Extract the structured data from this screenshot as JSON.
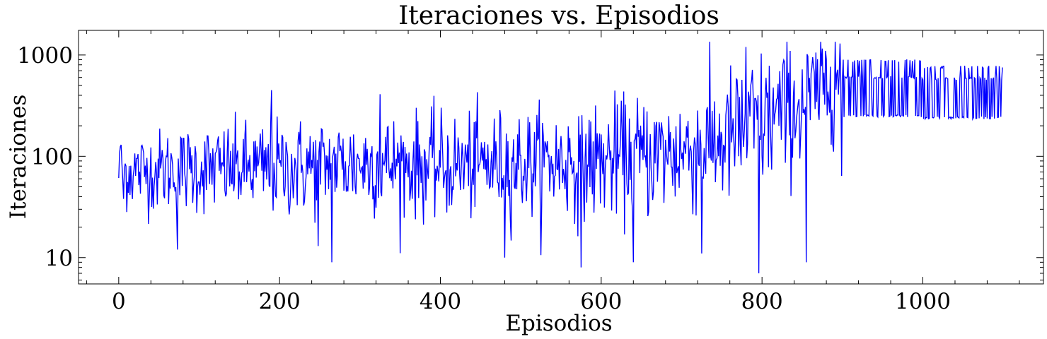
{
  "chart_data": {
    "type": "line",
    "title": "Iteraciones vs. Episodios",
    "xlabel": "Episodios",
    "ylabel": "Iteraciones",
    "xlim": [
      -50,
      1150
    ],
    "ylim": [
      5.5,
      1750
    ],
    "yscale": "log",
    "x_ticks": [
      0,
      200,
      400,
      600,
      800,
      1000
    ],
    "x_tick_labels": [
      "0",
      "200",
      "400",
      "600",
      "800",
      "1000"
    ],
    "y_ticks": [
      10,
      100,
      1000
    ],
    "y_tick_labels": [
      "10",
      "100",
      "1000"
    ],
    "grid": false,
    "series": [
      {
        "color": "#0000ff",
        "episodes": 1100,
        "segments": [
          {
            "x_start": 0,
            "x_end": 899,
            "regime": "noisy",
            "anchors": [
              [
                0,
                70
              ],
              [
                100,
                75
              ],
              [
                200,
                75
              ],
              [
                300,
                85
              ],
              [
                400,
                80
              ],
              [
                500,
                85
              ],
              [
                600,
                90
              ],
              [
                700,
                110
              ],
              [
                760,
                150
              ],
              [
                800,
                220
              ],
              [
                850,
                320
              ],
              [
                880,
                500
              ],
              [
                899,
                600
              ]
            ],
            "spread": [
              [
                0,
                0.8
              ],
              [
                200,
                1.0
              ],
              [
                500,
                1.1
              ],
              [
                700,
                1.3
              ],
              [
                800,
                1.5
              ],
              [
                899,
                1.1
              ]
            ]
          },
          {
            "x_start": 900,
            "x_end": 1099,
            "regime": "switching",
            "levels": [
              250,
              600,
              880
            ],
            "later_levels": [
              240,
              580,
              760
            ],
            "switch_at": 1000
          }
        ],
        "highlights": [
          {
            "x": 2,
            "y": 125
          },
          {
            "x": 6,
            "y": 38
          },
          {
            "x": 73,
            "y": 12
          },
          {
            "x": 190,
            "y": 450
          },
          {
            "x": 248,
            "y": 13
          },
          {
            "x": 265,
            "y": 9
          },
          {
            "x": 325,
            "y": 410
          },
          {
            "x": 480,
            "y": 10
          },
          {
            "x": 575,
            "y": 8
          },
          {
            "x": 640,
            "y": 9
          },
          {
            "x": 725,
            "y": 11
          },
          {
            "x": 780,
            "y": 1200
          },
          {
            "x": 796,
            "y": 7
          },
          {
            "x": 855,
            "y": 9
          },
          {
            "x": 891,
            "y": 1350
          },
          {
            "x": 899,
            "y": 64
          }
        ]
      }
    ]
  }
}
